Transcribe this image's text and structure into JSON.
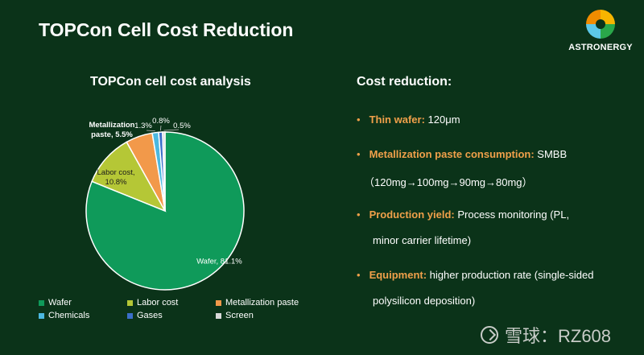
{
  "slide": {
    "title": "TOPCon Cell Cost Reduction"
  },
  "logo": {
    "text": "ASTRONERGY",
    "colors": [
      "#f7b500",
      "#f08c00",
      "#2aa84a",
      "#5cc8e8"
    ]
  },
  "chart_data": {
    "type": "pie",
    "title": "TOPCon cell cost analysis",
    "categories": [
      "Wafer",
      "Labor cost",
      "Metallization paste",
      "Chemicals",
      "Gases",
      "Screen"
    ],
    "values": [
      81.1,
      10.8,
      5.5,
      1.3,
      0.8,
      0.5
    ],
    "colors": [
      "#0f9a5a",
      "#b5c736",
      "#f2994a",
      "#4cb8e0",
      "#3b6fc9",
      "#d9d9d9"
    ],
    "data_labels": [
      [
        "Wafer, 81.1%"
      ],
      [
        "Labor cost,",
        "10.8%"
      ],
      [
        "Metallization",
        "paste, 5.5%"
      ],
      [
        "1.3%"
      ],
      [
        "0.8%"
      ],
      [
        "0.5%"
      ]
    ],
    "legend": [
      "Wafer",
      "Labor cost",
      "Metallization paste",
      "Chemicals",
      "Gases",
      "Screen"
    ],
    "legend_position": "bottom"
  },
  "cost_reduction": {
    "heading": "Cost reduction:",
    "bullet_char": "•",
    "items": [
      {
        "key": "Thin wafer:",
        "text": " 120μm",
        "cont": ""
      },
      {
        "key": "Metallization paste consumption:",
        "text": " SMBB",
        "cont": "（120mg→100mg→90mg→80mg）"
      },
      {
        "key": "Production yield:",
        "text": " Process monitoring (PL,",
        "cont": "minor carrier lifetime)"
      },
      {
        "key": "Equipment:",
        "text": " higher production rate (single-sided",
        "cont": "polysilicon deposition)"
      }
    ]
  },
  "watermark": {
    "text": "雪球：RZ608"
  }
}
